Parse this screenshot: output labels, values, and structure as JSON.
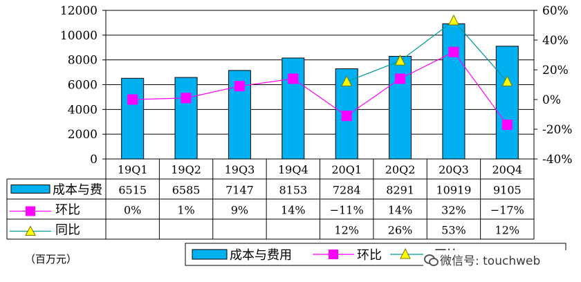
{
  "chart_data": {
    "type": "bar",
    "categories": [
      "19Q1",
      "19Q2",
      "19Q3",
      "19Q4",
      "20Q1",
      "20Q2",
      "20Q3",
      "20Q4"
    ],
    "series": [
      {
        "name": "成本与费用",
        "table_label": "成本与费",
        "kind": "bar",
        "axis": "left",
        "color": "#00b0f0",
        "values": [
          6515,
          6585,
          7147,
          8153,
          7284,
          8291,
          10919,
          9105
        ],
        "labels": [
          "6515",
          "6585",
          "7147",
          "8153",
          "7284",
          "8291",
          "10919",
          "9105"
        ]
      },
      {
        "name": "环比",
        "table_label": "环比",
        "kind": "line",
        "axis": "right",
        "color": "#ff00ff",
        "marker": "square",
        "values": [
          0,
          1,
          9,
          14,
          -11,
          14,
          32,
          -17
        ],
        "labels": [
          "0%",
          "1%",
          "9%",
          "14%",
          "−11%",
          "14%",
          "32%",
          "−17%"
        ]
      },
      {
        "name": "同比",
        "table_label": "同比",
        "kind": "line",
        "axis": "right",
        "color": "#009999",
        "marker": "triangle",
        "marker_color": "#ffff00",
        "values": [
          null,
          null,
          null,
          null,
          12,
          26,
          53,
          12
        ],
        "labels": [
          "",
          "",
          "",
          "",
          "12%",
          "26%",
          "53%",
          "12%"
        ]
      }
    ],
    "y_left": {
      "ticks": [
        "0",
        "2000",
        "4000",
        "6000",
        "8000",
        "10000",
        "12000"
      ],
      "ylim": [
        0,
        12000
      ]
    },
    "y_right": {
      "ticks": [
        "-40%",
        "-20%",
        "0%",
        "20%",
        "40%",
        "60%"
      ],
      "ylim": [
        -40,
        60
      ]
    },
    "grid": true,
    "legend_position": "bottom"
  },
  "unit_label": "（百万元）",
  "watermark": "微信号: touchweb"
}
